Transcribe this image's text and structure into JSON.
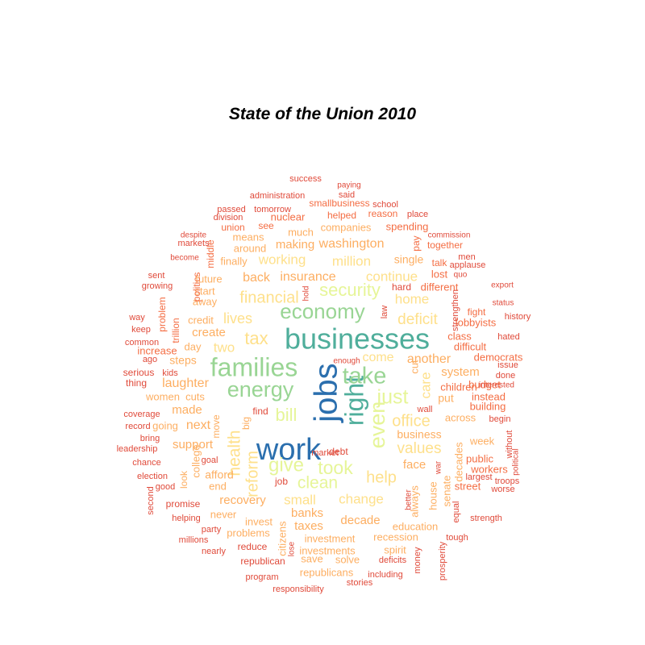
{
  "title": "State of the Union 2010",
  "palette": {
    "c1": "#2b6fae",
    "c2": "#4fae9b",
    "c3": "#99d594",
    "c4": "#e6f598",
    "c5": "#fee08b",
    "c6": "#fdae61",
    "c7": "#f46d43",
    "c8": "#e04a3a"
  },
  "words": [
    {
      "text": "work",
      "size": 38,
      "color": "c1"
    },
    {
      "text": "jobs",
      "size": 40,
      "color": "c1"
    },
    {
      "text": "businesses",
      "size": 36,
      "color": "c2"
    },
    {
      "text": "right",
      "size": 32,
      "color": "c2"
    },
    {
      "text": "families",
      "size": 32,
      "color": "c3"
    },
    {
      "text": "take",
      "size": 29,
      "color": "c3"
    },
    {
      "text": "energy",
      "size": 27,
      "color": "c3"
    },
    {
      "text": "economy",
      "size": 26,
      "color": "c3"
    },
    {
      "text": "just",
      "size": 25,
      "color": "c4"
    },
    {
      "text": "even",
      "size": 27,
      "color": "c4"
    },
    {
      "text": "give",
      "size": 24,
      "color": "c4"
    },
    {
      "text": "took",
      "size": 23,
      "color": "c4"
    },
    {
      "text": "clean",
      "size": 21,
      "color": "c4"
    },
    {
      "text": "security",
      "size": 22,
      "color": "c4"
    },
    {
      "text": "bill",
      "size": 22,
      "color": "c4"
    },
    {
      "text": "financial",
      "size": 20,
      "color": "c5"
    },
    {
      "text": "tax",
      "size": 22,
      "color": "c5"
    },
    {
      "text": "health",
      "size": 21,
      "color": "c5"
    },
    {
      "text": "reform",
      "size": 20,
      "color": "c5"
    },
    {
      "text": "help",
      "size": 20,
      "color": "c5"
    },
    {
      "text": "office",
      "size": 20,
      "color": "c5"
    },
    {
      "text": "values",
      "size": 19,
      "color": "c5"
    },
    {
      "text": "deficit",
      "size": 19,
      "color": "c5"
    },
    {
      "text": "home",
      "size": 17,
      "color": "c5"
    },
    {
      "text": "continue",
      "size": 17,
      "color": "c5"
    },
    {
      "text": "million",
      "size": 17,
      "color": "c5"
    },
    {
      "text": "working",
      "size": 17,
      "color": "c5"
    },
    {
      "text": "lives",
      "size": 18,
      "color": "c5"
    },
    {
      "text": "two",
      "size": 17,
      "color": "c5"
    },
    {
      "text": "back",
      "size": 16,
      "color": "c6"
    },
    {
      "text": "small",
      "size": 17,
      "color": "c5"
    },
    {
      "text": "change",
      "size": 17,
      "color": "c5"
    },
    {
      "text": "come",
      "size": 16,
      "color": "c5"
    },
    {
      "text": "care",
      "size": 17,
      "color": "c5"
    },
    {
      "text": "washington",
      "size": 16,
      "color": "c6"
    },
    {
      "text": "insurance",
      "size": 16,
      "color": "c6"
    },
    {
      "text": "making",
      "size": 15,
      "color": "c6"
    },
    {
      "text": "another",
      "size": 16,
      "color": "c6"
    },
    {
      "text": "system",
      "size": 15,
      "color": "c6"
    },
    {
      "text": "laughter",
      "size": 16,
      "color": "c6"
    },
    {
      "text": "create",
      "size": 15,
      "color": "c6"
    },
    {
      "text": "made",
      "size": 15,
      "color": "c6"
    },
    {
      "text": "next",
      "size": 16,
      "color": "c6"
    },
    {
      "text": "support",
      "size": 15,
      "color": "c6"
    },
    {
      "text": "recovery",
      "size": 15,
      "color": "c6"
    },
    {
      "text": "banks",
      "size": 15,
      "color": "c6"
    },
    {
      "text": "taxes",
      "size": 15,
      "color": "c6"
    },
    {
      "text": "decade",
      "size": 15,
      "color": "c6"
    },
    {
      "text": "face",
      "size": 15,
      "color": "c6"
    },
    {
      "text": "business",
      "size": 14,
      "color": "c6"
    },
    {
      "text": "afford",
      "size": 14,
      "color": "c6"
    },
    {
      "text": "put",
      "size": 14,
      "color": "c6"
    },
    {
      "text": "future",
      "size": 13,
      "color": "c6"
    },
    {
      "text": "single",
      "size": 14,
      "color": "c6"
    },
    {
      "text": "companies",
      "size": 13,
      "color": "c6"
    },
    {
      "text": "around",
      "size": 13,
      "color": "c6"
    },
    {
      "text": "means",
      "size": 13,
      "color": "c6"
    },
    {
      "text": "finally",
      "size": 13,
      "color": "c6"
    },
    {
      "text": "much",
      "size": 13,
      "color": "c6"
    },
    {
      "text": "start",
      "size": 13,
      "color": "c6"
    },
    {
      "text": "away",
      "size": 13,
      "color": "c6"
    },
    {
      "text": "credit",
      "size": 13,
      "color": "c6"
    },
    {
      "text": "day",
      "size": 13,
      "color": "c6"
    },
    {
      "text": "steps",
      "size": 14,
      "color": "c6"
    },
    {
      "text": "women",
      "size": 13,
      "color": "c6"
    },
    {
      "text": "cuts",
      "size": 13,
      "color": "c6"
    },
    {
      "text": "going",
      "size": 13,
      "color": "c6"
    },
    {
      "text": "move",
      "size": 12,
      "color": "c6"
    },
    {
      "text": "college",
      "size": 13,
      "color": "c6"
    },
    {
      "text": "look",
      "size": 12,
      "color": "c6"
    },
    {
      "text": "end",
      "size": 13,
      "color": "c6"
    },
    {
      "text": "never",
      "size": 13,
      "color": "c6"
    },
    {
      "text": "invest",
      "size": 13,
      "color": "c6"
    },
    {
      "text": "problems",
      "size": 13,
      "color": "c6"
    },
    {
      "text": "investment",
      "size": 13,
      "color": "c6"
    },
    {
      "text": "investments",
      "size": 13,
      "color": "c6"
    },
    {
      "text": "recession",
      "size": 13,
      "color": "c6"
    },
    {
      "text": "education",
      "size": 13,
      "color": "c6"
    },
    {
      "text": "spirit",
      "size": 13,
      "color": "c6"
    },
    {
      "text": "solve",
      "size": 13,
      "color": "c6"
    },
    {
      "text": "save",
      "size": 13,
      "color": "c6"
    },
    {
      "text": "republicans",
      "size": 13,
      "color": "c6"
    },
    {
      "text": "citizens",
      "size": 13,
      "color": "c6"
    },
    {
      "text": "always",
      "size": 13,
      "color": "c6"
    },
    {
      "text": "house",
      "size": 13,
      "color": "c6"
    },
    {
      "text": "senate",
      "size": 13,
      "color": "c6"
    },
    {
      "text": "decades",
      "size": 13,
      "color": "c6"
    },
    {
      "text": "week",
      "size": 13,
      "color": "c6"
    },
    {
      "text": "across",
      "size": 13,
      "color": "c6"
    },
    {
      "text": "cut",
      "size": 13,
      "color": "c6"
    },
    {
      "text": "big",
      "size": 12,
      "color": "c6"
    },
    {
      "text": "increase",
      "size": 13,
      "color": "c7"
    },
    {
      "text": "children",
      "size": 13,
      "color": "c7"
    },
    {
      "text": "instead",
      "size": 13,
      "color": "c7"
    },
    {
      "text": "building",
      "size": 13,
      "color": "c7"
    },
    {
      "text": "public",
      "size": 13,
      "color": "c7"
    },
    {
      "text": "workers",
      "size": 13,
      "color": "c7"
    },
    {
      "text": "street",
      "size": 13,
      "color": "c7"
    },
    {
      "text": "class",
      "size": 13,
      "color": "c7"
    },
    {
      "text": "difficult",
      "size": 13,
      "color": "c7"
    },
    {
      "text": "lobbyists",
      "size": 13,
      "color": "c7"
    },
    {
      "text": "democrats",
      "size": 13,
      "color": "c7"
    },
    {
      "text": "budget",
      "size": 13,
      "color": "c7"
    },
    {
      "text": "fight",
      "size": 12,
      "color": "c7"
    },
    {
      "text": "different",
      "size": 13,
      "color": "c7"
    },
    {
      "text": "lost",
      "size": 13,
      "color": "c7"
    },
    {
      "text": "talk",
      "size": 12,
      "color": "c7"
    },
    {
      "text": "together",
      "size": 12,
      "color": "c7"
    },
    {
      "text": "spending",
      "size": 13,
      "color": "c7"
    },
    {
      "text": "pay",
      "size": 12,
      "color": "c7"
    },
    {
      "text": "helped",
      "size": 12,
      "color": "c7"
    },
    {
      "text": "nuclear",
      "size": 13,
      "color": "c7"
    },
    {
      "text": "see",
      "size": 12,
      "color": "c7"
    },
    {
      "text": "union",
      "size": 12,
      "color": "c7"
    },
    {
      "text": "reason",
      "size": 12,
      "color": "c7"
    },
    {
      "text": "smallbusiness",
      "size": 12,
      "color": "c7"
    },
    {
      "text": "problem",
      "size": 12,
      "color": "c7"
    },
    {
      "text": "trillion",
      "size": 12,
      "color": "c7"
    },
    {
      "text": "politics",
      "size": 12,
      "color": "c7"
    },
    {
      "text": "middle",
      "size": 12,
      "color": "c7"
    },
    {
      "text": "find",
      "size": 12,
      "color": "c8"
    },
    {
      "text": "job",
      "size": 12,
      "color": "c8"
    },
    {
      "text": "debt",
      "size": 12,
      "color": "c8"
    },
    {
      "text": "hard",
      "size": 12,
      "color": "c8"
    },
    {
      "text": "wall",
      "size": 11,
      "color": "c8"
    },
    {
      "text": "goal",
      "size": 11,
      "color": "c8"
    },
    {
      "text": "serious",
      "size": 12,
      "color": "c8"
    },
    {
      "text": "kids",
      "size": 11,
      "color": "c8"
    },
    {
      "text": "thing",
      "size": 12,
      "color": "c8"
    },
    {
      "text": "keep",
      "size": 11,
      "color": "c8"
    },
    {
      "text": "common",
      "size": 11,
      "color": "c8"
    },
    {
      "text": "way",
      "size": 11,
      "color": "c8"
    },
    {
      "text": "ago",
      "size": 11,
      "color": "c8"
    },
    {
      "text": "coverage",
      "size": 11,
      "color": "c8"
    },
    {
      "text": "record",
      "size": 11,
      "color": "c8"
    },
    {
      "text": "bring",
      "size": 11,
      "color": "c8"
    },
    {
      "text": "leadership",
      "size": 11,
      "color": "c8"
    },
    {
      "text": "chance",
      "size": 11,
      "color": "c8"
    },
    {
      "text": "election",
      "size": 11,
      "color": "c8"
    },
    {
      "text": "good",
      "size": 11,
      "color": "c8"
    },
    {
      "text": "second",
      "size": 11,
      "color": "c8"
    },
    {
      "text": "promise",
      "size": 12,
      "color": "c8"
    },
    {
      "text": "helping",
      "size": 11,
      "color": "c8"
    },
    {
      "text": "party",
      "size": 11,
      "color": "c8"
    },
    {
      "text": "millions",
      "size": 11,
      "color": "c8"
    },
    {
      "text": "nearly",
      "size": 11,
      "color": "c8"
    },
    {
      "text": "reduce",
      "size": 12,
      "color": "c8"
    },
    {
      "text": "republican",
      "size": 12,
      "color": "c8"
    },
    {
      "text": "program",
      "size": 11,
      "color": "c8"
    },
    {
      "text": "responsibility",
      "size": 11,
      "color": "c8"
    },
    {
      "text": "stories",
      "size": 11,
      "color": "c8"
    },
    {
      "text": "including",
      "size": 11,
      "color": "c8"
    },
    {
      "text": "deficits",
      "size": 11,
      "color": "c8"
    },
    {
      "text": "lose",
      "size": 10,
      "color": "c8"
    },
    {
      "text": "money",
      "size": 11,
      "color": "c8"
    },
    {
      "text": "better",
      "size": 10,
      "color": "c8"
    },
    {
      "text": "war",
      "size": 10,
      "color": "c8"
    },
    {
      "text": "prosperity",
      "size": 11,
      "color": "c8"
    },
    {
      "text": "equal",
      "size": 11,
      "color": "c8"
    },
    {
      "text": "tough",
      "size": 11,
      "color": "c8"
    },
    {
      "text": "strength",
      "size": 11,
      "color": "c8"
    },
    {
      "text": "largest",
      "size": 11,
      "color": "c8"
    },
    {
      "text": "worse",
      "size": 11,
      "color": "c8"
    },
    {
      "text": "troops",
      "size": 11,
      "color": "c8"
    },
    {
      "text": "without",
      "size": 11,
      "color": "c8"
    },
    {
      "text": "political",
      "size": 10,
      "color": "c8"
    },
    {
      "text": "begin",
      "size": 11,
      "color": "c8"
    },
    {
      "text": "interested",
      "size": 10,
      "color": "c8"
    },
    {
      "text": "done",
      "size": 11,
      "color": "c8"
    },
    {
      "text": "issue",
      "size": 11,
      "color": "c8"
    },
    {
      "text": "hated",
      "size": 11,
      "color": "c8"
    },
    {
      "text": "history",
      "size": 11,
      "color": "c8"
    },
    {
      "text": "status",
      "size": 10,
      "color": "c8"
    },
    {
      "text": "export",
      "size": 10,
      "color": "c8"
    },
    {
      "text": "strengthen",
      "size": 11,
      "color": "c8"
    },
    {
      "text": "quo",
      "size": 10,
      "color": "c8"
    },
    {
      "text": "applause",
      "size": 11,
      "color": "c8"
    },
    {
      "text": "men",
      "size": 11,
      "color": "c8"
    },
    {
      "text": "commission",
      "size": 10,
      "color": "c8"
    },
    {
      "text": "place",
      "size": 11,
      "color": "c8"
    },
    {
      "text": "school",
      "size": 11,
      "color": "c8"
    },
    {
      "text": "paying",
      "size": 10,
      "color": "c8"
    },
    {
      "text": "said",
      "size": 11,
      "color": "c8"
    },
    {
      "text": "success",
      "size": 11,
      "color": "c8"
    },
    {
      "text": "administration",
      "size": 11,
      "color": "c8"
    },
    {
      "text": "tomorrow",
      "size": 11,
      "color": "c8"
    },
    {
      "text": "passed",
      "size": 11,
      "color": "c8"
    },
    {
      "text": "division",
      "size": 11,
      "color": "c8"
    },
    {
      "text": "despite",
      "size": 10,
      "color": "c8"
    },
    {
      "text": "markets",
      "size": 11,
      "color": "c8"
    },
    {
      "text": "become",
      "size": 10,
      "color": "c8"
    },
    {
      "text": "sent",
      "size": 11,
      "color": "c8"
    },
    {
      "text": "growing",
      "size": 11,
      "color": "c8"
    },
    {
      "text": "enough",
      "size": 10,
      "color": "c8"
    },
    {
      "text": "market",
      "size": 11,
      "color": "c8"
    },
    {
      "text": "law",
      "size": 11,
      "color": "c8"
    },
    {
      "text": "hold",
      "size": 10,
      "color": "c8"
    },
    {
      "text": "iraq",
      "size": 9,
      "color": "c8"
    },
    {
      "text": "wait",
      "size": 9,
      "color": "c8"
    }
  ]
}
